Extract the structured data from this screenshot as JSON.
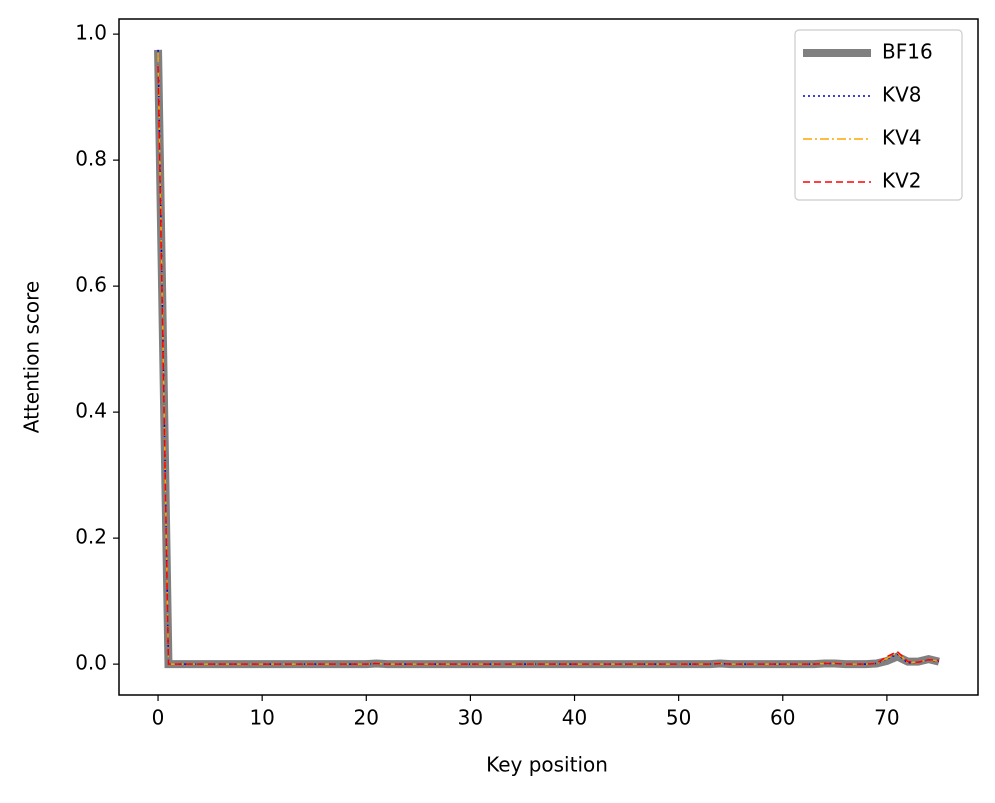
{
  "chart_data": {
    "type": "line",
    "xlabel": "Key position",
    "ylabel": "Attention score",
    "x": [
      0,
      1,
      2,
      3,
      4,
      5,
      6,
      7,
      8,
      9,
      10,
      11,
      12,
      13,
      14,
      15,
      16,
      17,
      18,
      19,
      20,
      21,
      22,
      23,
      24,
      25,
      26,
      27,
      28,
      29,
      30,
      31,
      32,
      33,
      34,
      35,
      36,
      37,
      38,
      39,
      40,
      41,
      42,
      43,
      44,
      45,
      46,
      47,
      48,
      49,
      50,
      51,
      52,
      53,
      54,
      55,
      56,
      57,
      58,
      59,
      60,
      61,
      62,
      63,
      64,
      65,
      66,
      67,
      68,
      69,
      70,
      71,
      72,
      73,
      74,
      75
    ],
    "series": [
      {
        "name": "BF16",
        "color": "#808080",
        "linewidth": 8,
        "dash": "solid",
        "values": [
          0.975,
          0,
          0,
          0,
          0,
          0,
          0,
          0,
          0,
          0,
          0,
          0,
          0,
          0,
          0,
          0,
          0,
          0,
          0,
          0,
          0,
          0.001,
          0,
          0,
          0,
          0,
          0,
          0,
          0,
          0,
          0,
          0,
          0,
          0,
          0,
          0,
          0,
          0,
          0,
          0,
          0,
          0,
          0,
          0,
          0,
          0,
          0,
          0,
          0,
          0,
          0,
          0,
          0,
          0,
          0.001,
          0,
          0,
          0,
          0,
          0,
          0,
          0,
          0,
          0,
          0.001,
          0.001,
          0,
          0,
          0,
          0.001,
          0.005,
          0.012,
          0.004,
          0.004,
          0.008,
          0.004
        ]
      },
      {
        "name": "KV8",
        "color": "#0000cc",
        "linewidth": 1.5,
        "dash": "dotted",
        "values": [
          0.975,
          0,
          0,
          0,
          0,
          0,
          0,
          0,
          0,
          0,
          0,
          0,
          0,
          0,
          0,
          0,
          0,
          0,
          0,
          0,
          0,
          0.001,
          0,
          0,
          0,
          0,
          0,
          0,
          0,
          0,
          0,
          0,
          0,
          0,
          0,
          0,
          0,
          0,
          0,
          0,
          0,
          0,
          0,
          0,
          0,
          0,
          0,
          0,
          0,
          0,
          0,
          0,
          0,
          0,
          0.001,
          0,
          0,
          0,
          0,
          0,
          0,
          0,
          0,
          0,
          0.001,
          0.001,
          0,
          0,
          0,
          0.001,
          0.008,
          0.016,
          0.002,
          0.003,
          0.007,
          0.004
        ]
      },
      {
        "name": "KV4",
        "color": "#ffa500",
        "linewidth": 1.5,
        "dash": "dashdot",
        "values": [
          0.97,
          0,
          0,
          0,
          0,
          0,
          0,
          0,
          0,
          0,
          0,
          0,
          0,
          0,
          0,
          0,
          0,
          0,
          0,
          0,
          0,
          0.001,
          0,
          0,
          0,
          0,
          0,
          0,
          0,
          0,
          0,
          0,
          0,
          0,
          0,
          0,
          0,
          0,
          0,
          0,
          0,
          0,
          0,
          0,
          0,
          0,
          0,
          0,
          0,
          0,
          0,
          0,
          0,
          0,
          0.001,
          0,
          0,
          0,
          0,
          0,
          0,
          0,
          0,
          0,
          0.001,
          0.001,
          0,
          0,
          0,
          0.001,
          0.009,
          0.018,
          0.003,
          0.003,
          0.007,
          0.005
        ]
      },
      {
        "name": "KV2",
        "color": "#ff0000",
        "linewidth": 1.5,
        "dash": "dashed",
        "values": [
          0.95,
          0,
          0,
          0,
          0,
          0,
          0,
          0,
          0,
          0,
          0,
          0,
          0,
          0,
          0,
          0,
          0,
          0,
          0,
          0,
          0,
          0.001,
          0,
          0,
          0,
          0,
          0,
          0,
          0,
          0,
          0,
          0,
          0,
          0,
          0,
          0,
          0,
          0,
          0,
          0,
          0,
          0,
          0,
          0,
          0,
          0,
          0,
          0,
          0,
          0,
          0,
          0,
          0,
          0,
          0.001,
          0,
          0,
          0,
          0,
          0,
          0,
          0,
          0,
          0,
          0.001,
          0.001,
          0,
          0,
          0,
          0.001,
          0.012,
          0.02,
          0.004,
          0.003,
          0.007,
          0.006
        ]
      }
    ],
    "xlim": [
      -3.75,
      78.75
    ],
    "xticks": [
      0,
      10,
      20,
      30,
      40,
      50,
      60,
      70
    ],
    "ylim": [
      -0.049,
      1.024
    ],
    "yticks": [
      {
        "value": 0,
        "label": "0.0"
      },
      {
        "value": 0.2,
        "label": "0.2"
      },
      {
        "value": 0.4,
        "label": "0.4"
      },
      {
        "value": 0.6,
        "label": "0.6"
      },
      {
        "value": 0.8,
        "label": "0.8"
      },
      {
        "value": 1,
        "label": "1.0"
      }
    ],
    "grid": false,
    "legend": "upper right"
  }
}
